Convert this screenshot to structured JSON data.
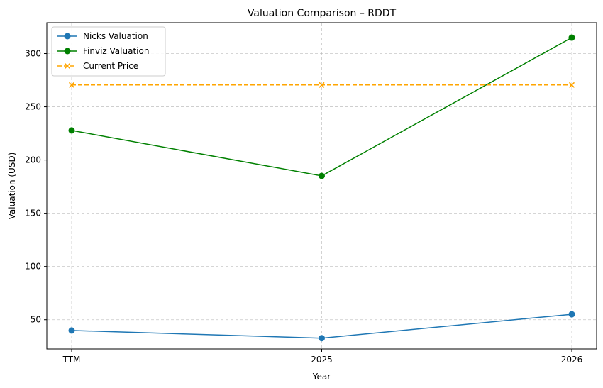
{
  "chart_data": {
    "type": "line",
    "title": "Valuation Comparison – RDDT",
    "xlabel": "Year",
    "ylabel": "Valuation (USD)",
    "categories": [
      "TTM",
      "2025",
      "2026"
    ],
    "ylim": [
      22.5,
      329
    ],
    "yticks": [
      50,
      100,
      150,
      200,
      250,
      300
    ],
    "grid": true,
    "legend_position": "top-left",
    "series": [
      {
        "name": "Nicks Valuation",
        "values": [
          39.9,
          32.7,
          55.1
        ],
        "color": "#1f77b4",
        "marker": "circle",
        "linestyle": "solid"
      },
      {
        "name": "Finviz Valuation",
        "values": [
          227.8,
          185.1,
          315.0
        ],
        "color": "#008000",
        "marker": "circle",
        "linestyle": "solid"
      },
      {
        "name": "Current Price",
        "values": [
          270.5,
          270.5,
          270.5
        ],
        "color": "#ffa500",
        "marker": "x",
        "linestyle": "dashed"
      }
    ]
  }
}
